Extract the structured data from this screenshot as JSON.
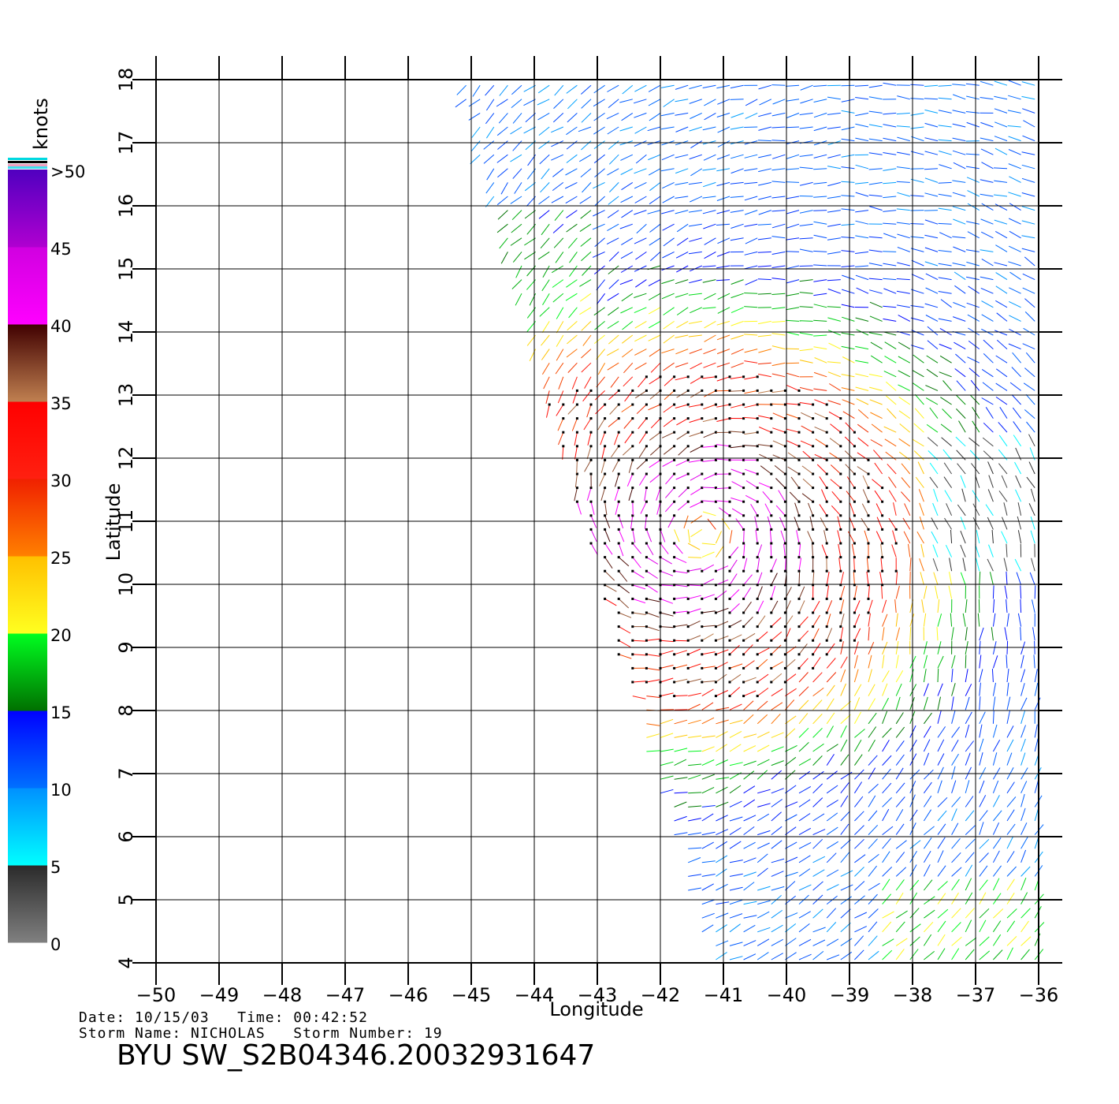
{
  "chart_data": {
    "type": "scatter",
    "title": "BYU SW_S2B04346.20032931647",
    "xlabel": "Longitude",
    "ylabel": "Latitude",
    "xlim": [
      -50,
      -36
    ],
    "ylim": [
      4,
      18
    ],
    "x_ticks": [
      "−50",
      "−49",
      "−48",
      "−47",
      "−46",
      "−45",
      "−44",
      "−43",
      "−42",
      "−41",
      "−40",
      "−39",
      "−38",
      "−37",
      "−36"
    ],
    "y_ticks": [
      "4",
      "5",
      "6",
      "7",
      "8",
      "9",
      "10",
      "11",
      "12",
      "13",
      "14",
      "15",
      "16",
      "17",
      "18"
    ],
    "grid": true,
    "colorbar": {
      "unit": "knots",
      "tick_labels": [
        "0",
        "5",
        "10",
        "15",
        "20",
        "25",
        "30",
        "35",
        "40",
        "45",
        ">50"
      ],
      "bands": [
        {
          "from": 0,
          "to": 5,
          "colors": [
            "#808080",
            "#2a2a2a"
          ]
        },
        {
          "from": 5,
          "to": 10,
          "colors": [
            "#00ffff",
            "#0090ff"
          ]
        },
        {
          "from": 10,
          "to": 15,
          "colors": [
            "#0070ff",
            "#0000ff"
          ]
        },
        {
          "from": 15,
          "to": 20,
          "colors": [
            "#007000",
            "#00ff20"
          ]
        },
        {
          "from": 20,
          "to": 25,
          "colors": [
            "#ffff20",
            "#ffc000"
          ]
        },
        {
          "from": 25,
          "to": 30,
          "colors": [
            "#ff8000",
            "#f02000"
          ]
        },
        {
          "from": 30,
          "to": 35,
          "colors": [
            "#ff2010",
            "#ff0000"
          ]
        },
        {
          "from": 35,
          "to": 40,
          "colors": [
            "#c08050",
            "#400000"
          ]
        },
        {
          "from": 40,
          "to": 45,
          "colors": [
            "#ff00ff",
            "#d000e0"
          ]
        },
        {
          "from": 45,
          "to": 50,
          "colors": [
            "#b000d0",
            "#5000c0"
          ]
        }
      ]
    },
    "swath_lon_lat": [
      [
        -45.2,
        18
      ],
      [
        -36,
        18
      ],
      [
        -36,
        4
      ],
      [
        -41.2,
        4
      ],
      [
        -42.0,
        6.5
      ]
    ],
    "storm_center": {
      "lon": -41.3,
      "lat": 10.8,
      "max_speed_knots": 42
    }
  },
  "info": {
    "line1": "Date: 10/15/03   Time: 00:42:52",
    "line2": "Storm Name: NICHOLAS   Storm Number: 19"
  },
  "footer_title": "BYU SW_S2B04346.20032931647"
}
